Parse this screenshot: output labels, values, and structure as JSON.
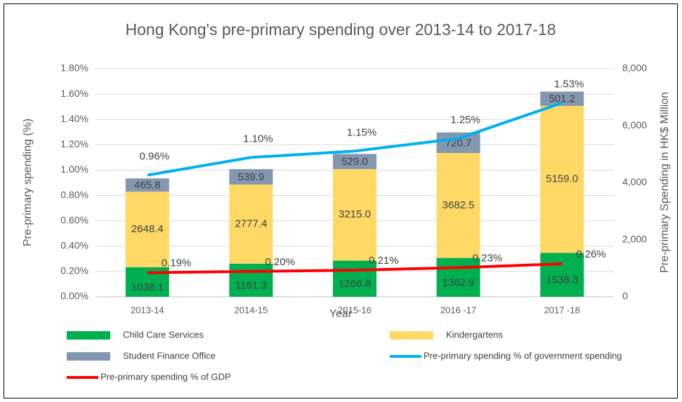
{
  "chart_data": {
    "type": "bar",
    "title": "Hong Kong's pre-primary spending over 2013-14 to 2017-18",
    "x_label": "Year",
    "y_label": "Pre-primary spending (%)",
    "y2_label": "Pre-primary Spending in HK$ Million",
    "categories": [
      "2013-14",
      "2014-15",
      "2015-16",
      "2016 -17",
      "2017 -18"
    ],
    "ylim": [
      0,
      1.8
    ],
    "yticks": [
      {
        "value": 0,
        "label": "0.00%"
      },
      {
        "value": 0.2,
        "label": "0.20%"
      },
      {
        "value": 0.4,
        "label": "0.40%"
      },
      {
        "value": 0.6,
        "label": "0.60%"
      },
      {
        "value": 0.8,
        "label": "0.80%"
      },
      {
        "value": 1.0,
        "label": "1.00%"
      },
      {
        "value": 1.2,
        "label": "1.20%"
      },
      {
        "value": 1.4,
        "label": "1.40%"
      },
      {
        "value": 1.6,
        "label": "1.60%"
      },
      {
        "value": 1.8,
        "label": "1.80%"
      }
    ],
    "y2lim": [
      0,
      8000
    ],
    "y2ticks": [
      0,
      {
        "value": 2000,
        "label": "2,000"
      },
      {
        "value": 4000,
        "label": "4,000"
      },
      {
        "value": 6000,
        "label": "6,000"
      },
      {
        "value": 8000,
        "label": "8,000"
      }
    ],
    "grid": true,
    "stacked": true,
    "series": [
      {
        "name": "Child Care Services",
        "type": "bar",
        "axis": "y2",
        "color": "#00b050",
        "values": [
          1038.1,
          1161.3,
          1266.8,
          1362.9,
          1538.3
        ]
      },
      {
        "name": "Kindergartens",
        "type": "bar",
        "axis": "y2",
        "color": "#ffd966",
        "values": [
          2648.4,
          2777.4,
          3215,
          3682.5,
          5159
        ],
        "value_labels": [
          "2648.4",
          "2777.4",
          "3215.0",
          "3682.5",
          "5159.0"
        ]
      },
      {
        "name": "Student Finance Office",
        "type": "bar",
        "axis": "y2",
        "color": "#8497b0",
        "values": [
          465.8,
          539.9,
          529,
          720.7,
          501.2
        ],
        "value_labels": [
          "465.8",
          "539.9",
          "529.0",
          "720.7",
          "501.2"
        ]
      },
      {
        "name": "Pre-primary spending % of government spending",
        "type": "line",
        "axis": "y",
        "color": "#00b0f0",
        "values": [
          0.96,
          1.1,
          1.15,
          1.25,
          1.53
        ],
        "value_labels": [
          "0.96%",
          "1.10%",
          "1.15%",
          "1.25%",
          "1.53%"
        ]
      },
      {
        "name": "Pre-primary spending % of GDP",
        "type": "line",
        "axis": "y",
        "color": "#ff0000",
        "values": [
          0.19,
          0.2,
          0.21,
          0.23,
          0.26
        ],
        "value_labels": [
          "0.19%",
          "0.20%",
          "0.21%",
          "0.23%",
          "0.26%"
        ]
      }
    ]
  }
}
